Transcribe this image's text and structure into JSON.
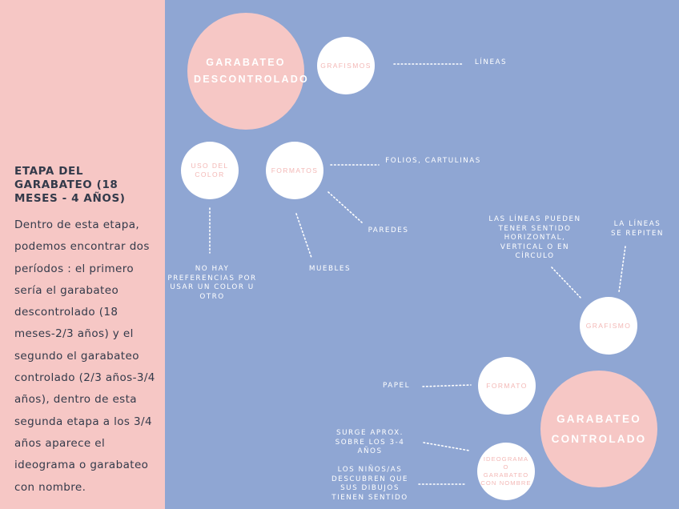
{
  "sidebar": {
    "title": "ETAPA DEL GARABATEO (18 MESES - 4 AÑOS)",
    "body": "Dentro de esta etapa, podemos encontrar dos períodos : el primero sería el garabateo descontrolado (18 meses-2/3 años) y el segundo el garabateo controlado (2/3 años-3/4 años), dentro de esta segunda etapa a los 3/4 años aparece el ideograma o garabateo con nombre."
  },
  "diagram": {
    "descontrolado": {
      "title": "GARABATEO DESCONTROLADO",
      "grafismos": "GRAFISMOS",
      "lineas": "LÍNEAS",
      "uso_color": "USO DEL COLOR",
      "uso_color_desc": "NO HAY PREFERENCIAS POR USAR UN COLOR U OTRO",
      "formatos": "FORMATOS",
      "folios": "FOLIOS, CARTULINAS",
      "paredes": "PAREDES",
      "muebles": "MUEBLES"
    },
    "controlado": {
      "title": "GARABATEO CONTROLADO",
      "grafismo": "GRAFISMO",
      "lineas_sentido": "LAS LÍNEAS PUEDEN TENER SENTIDO HORIZONTAL, VERTICAL O EN CÍRCULO",
      "lineas_repiten": "LA LÍNEAS SE REPITEN",
      "formato": "FORMATO",
      "papel": "PAPEL",
      "ideograma": "IDEOGRAMA O GARABATEO CON NOMBRE",
      "surge": "SURGE APROX. SOBRE LOS 3-4 AÑOS",
      "descubren": "LOS NIÑOS/AS DESCUBREN QUE SUS DIBUJOS TIENEN SENTIDO"
    }
  }
}
